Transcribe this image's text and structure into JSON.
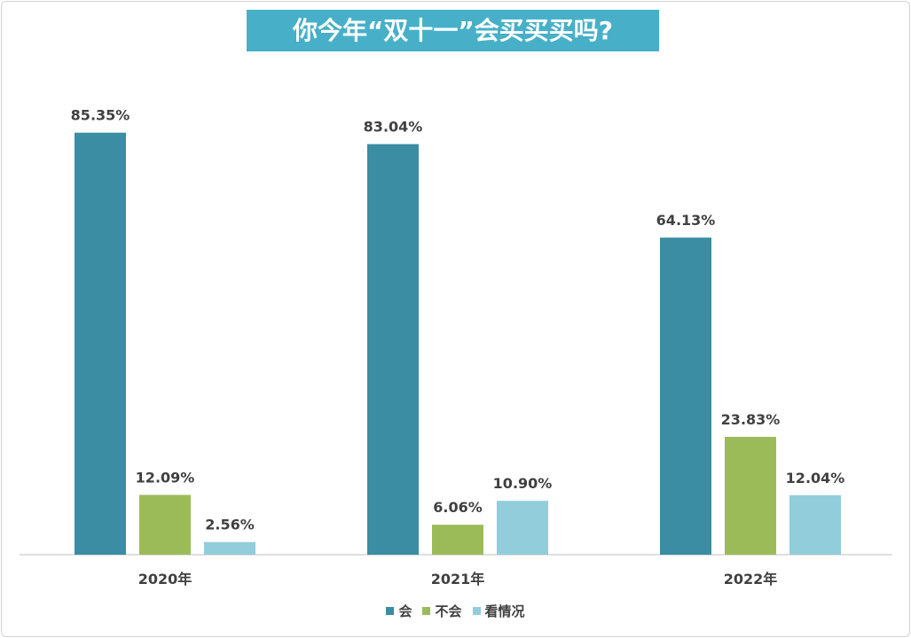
{
  "chart_data": {
    "type": "bar",
    "title": "你今年“双十一”会买买买吗?",
    "categories": [
      "2020年",
      "2021年",
      "2022年"
    ],
    "series": [
      {
        "name": "会",
        "values": [
          85.35,
          83.04,
          64.13
        ],
        "labels": [
          "85.35%",
          "83.04%",
          "64.13%"
        ],
        "color": "#3a8da3"
      },
      {
        "name": "不会",
        "values": [
          12.09,
          6.06,
          23.83
        ],
        "labels": [
          "12.09%",
          "6.06%",
          "23.83%"
        ],
        "color": "#9bbb59"
      },
      {
        "name": "看情况",
        "values": [
          2.56,
          10.9,
          12.04
        ],
        "labels": [
          "2.56%",
          "10.90%",
          "12.04%"
        ],
        "color": "#92cddc"
      }
    ],
    "ylim": [
      0,
      100
    ],
    "grid": false,
    "legend": "bottom"
  }
}
